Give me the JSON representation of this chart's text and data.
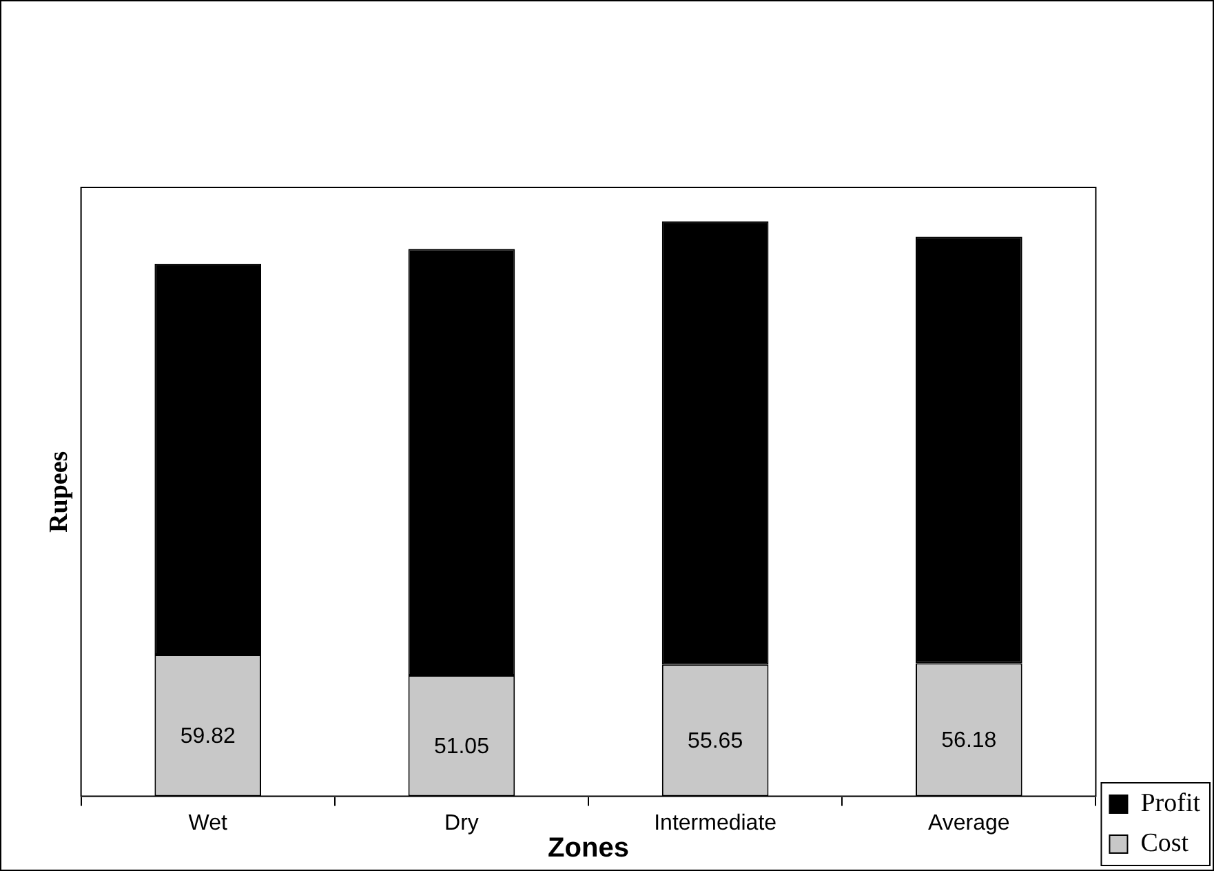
{
  "chart_data": {
    "type": "bar",
    "stacked": true,
    "xlabel": "Zones",
    "ylabel": "Rupees",
    "categories": [
      "Wet",
      "Dry",
      "Intermediate",
      "Average"
    ],
    "series": [
      {
        "name": "Cost",
        "color": "#c8c8c8",
        "values": [
          59.82,
          51.05,
          55.65,
          56.18
        ],
        "value_labels": [
          "59.82",
          "51.05",
          "55.65",
          "56.18"
        ]
      },
      {
        "name": "Profit",
        "color": "#000000",
        "values": [
          165,
          180,
          187,
          180
        ]
      }
    ],
    "ylim": [
      0,
      257
    ],
    "tick_labels": "x",
    "legend": "bottom right"
  }
}
